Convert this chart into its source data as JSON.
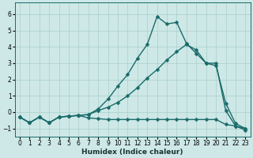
{
  "xlabel": "Humidex (Indice chaleur)",
  "background_color": "#cde8e6",
  "grid_color": "#aacfcc",
  "line_color": "#1a6b6b",
  "xlim": [
    -0.5,
    23.5
  ],
  "ylim": [
    -1.5,
    6.7
  ],
  "xticks": [
    0,
    1,
    2,
    3,
    4,
    5,
    6,
    7,
    8,
    9,
    10,
    11,
    12,
    13,
    14,
    15,
    16,
    17,
    18,
    19,
    20,
    21,
    22,
    23
  ],
  "yticks": [
    -1,
    0,
    1,
    2,
    3,
    4,
    5,
    6
  ],
  "curve_peak_x": [
    0,
    1,
    2,
    3,
    4,
    5,
    6,
    7,
    8,
    9,
    10,
    11,
    12,
    13,
    14,
    15,
    16,
    17,
    18,
    19,
    20,
    21,
    22,
    23
  ],
  "curve_peak_y": [
    -0.3,
    -0.65,
    -0.3,
    -0.65,
    -0.3,
    -0.25,
    -0.2,
    -0.15,
    0.2,
    0.8,
    1.6,
    2.3,
    3.3,
    4.15,
    5.85,
    5.4,
    5.5,
    4.2,
    3.6,
    3.0,
    3.0,
    0.1,
    -0.85,
    -1.1
  ],
  "curve_mid_x": [
    0,
    1,
    2,
    3,
    4,
    5,
    6,
    7,
    8,
    9,
    10,
    11,
    12,
    13,
    14,
    15,
    16,
    17,
    18,
    19,
    20,
    21,
    22,
    23
  ],
  "curve_mid_y": [
    -0.3,
    -0.65,
    -0.3,
    -0.65,
    -0.3,
    -0.25,
    -0.2,
    -0.15,
    0.1,
    0.3,
    0.6,
    1.0,
    1.5,
    2.1,
    2.6,
    3.2,
    3.7,
    4.15,
    3.8,
    3.0,
    2.85,
    0.55,
    -0.7,
    -1.0
  ],
  "curve_flat_x": [
    0,
    1,
    2,
    3,
    4,
    5,
    6,
    7,
    8,
    9,
    10,
    11,
    12,
    13,
    14,
    15,
    16,
    17,
    18,
    19,
    20,
    21,
    22,
    23
  ],
  "curve_flat_y": [
    -0.3,
    -0.65,
    -0.3,
    -0.65,
    -0.3,
    -0.25,
    -0.2,
    -0.35,
    -0.4,
    -0.45,
    -0.45,
    -0.45,
    -0.45,
    -0.45,
    -0.45,
    -0.45,
    -0.45,
    -0.45,
    -0.45,
    -0.45,
    -0.45,
    -0.75,
    -0.85,
    -1.0
  ],
  "marker_size": 2.5,
  "line_width": 1.0
}
